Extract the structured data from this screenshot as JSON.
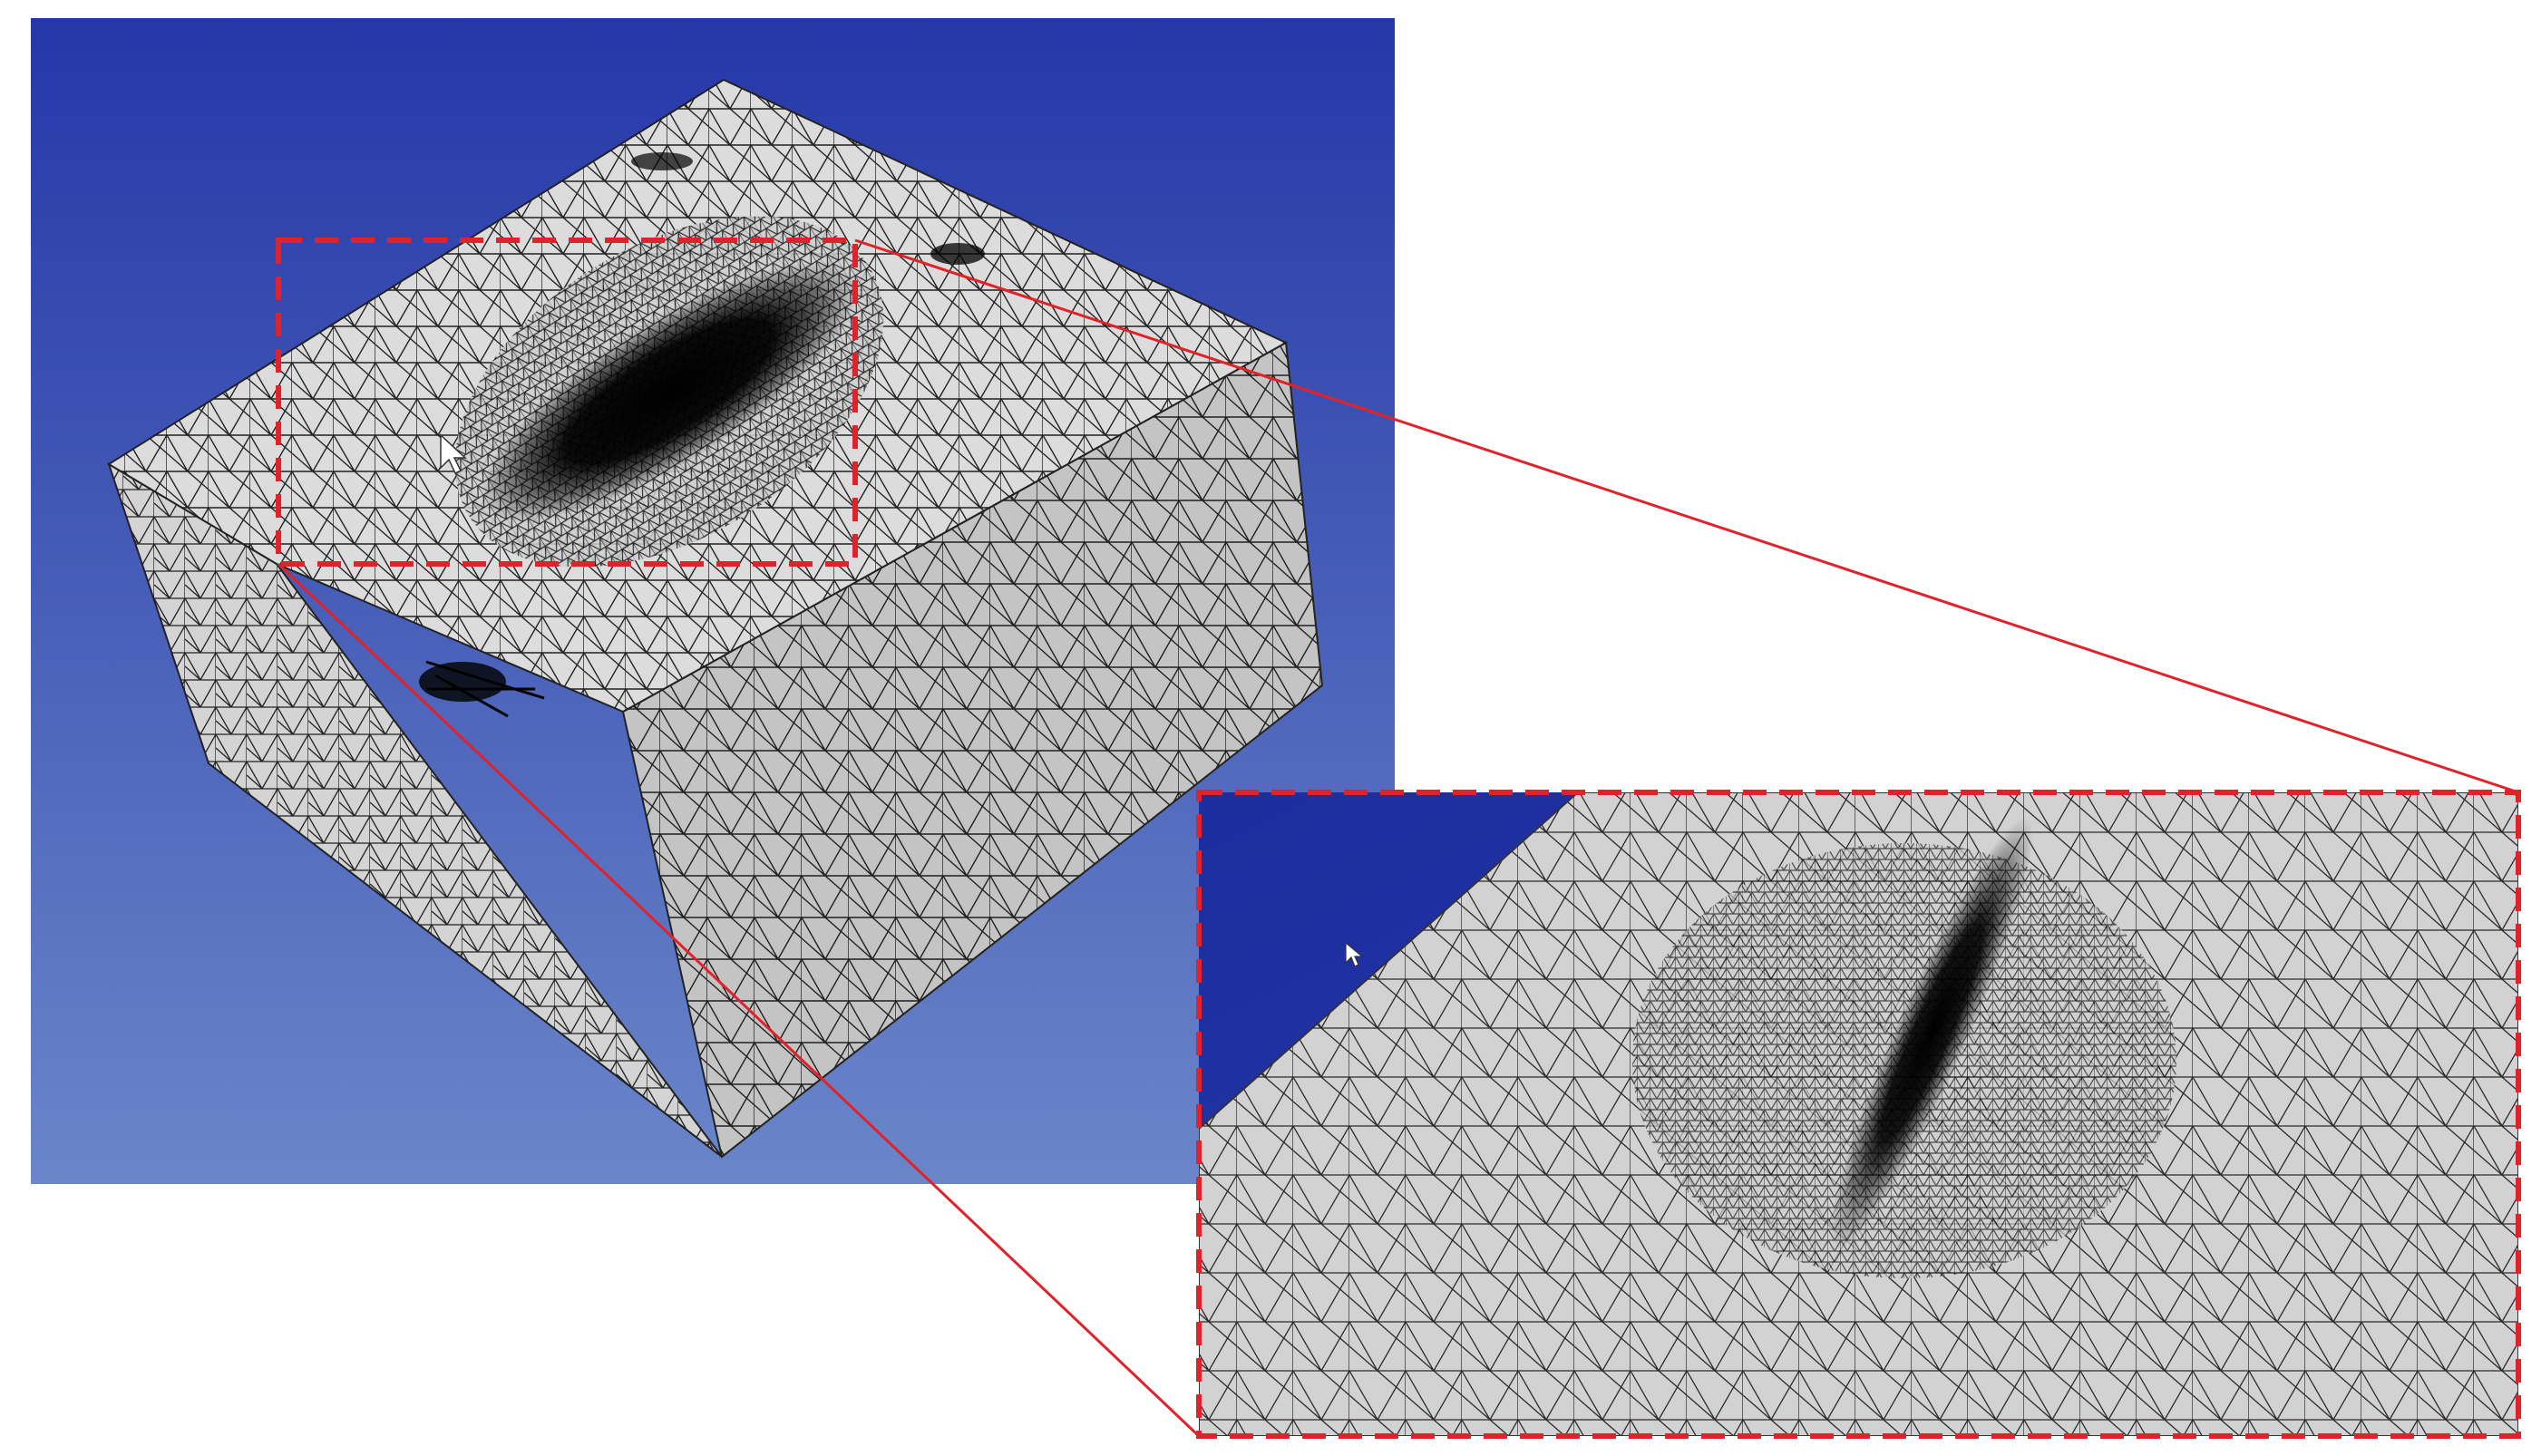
{
  "viewport": {
    "background_top": "#2537a8",
    "background_bottom": "#6a86c9"
  },
  "mesh": {
    "face_color": "#dcdcdc",
    "side_light": "#d2d2d2",
    "side_dark": "#bdbdbd",
    "edge_color": "#1a1a1a",
    "dense_region_color": "#000000"
  },
  "zoom": {
    "frame_color": "#e0222a",
    "connector_color": "#e0222a",
    "inset_background": "#1e2fa0"
  },
  "icons": [
    "mouse-cursor-icon"
  ]
}
